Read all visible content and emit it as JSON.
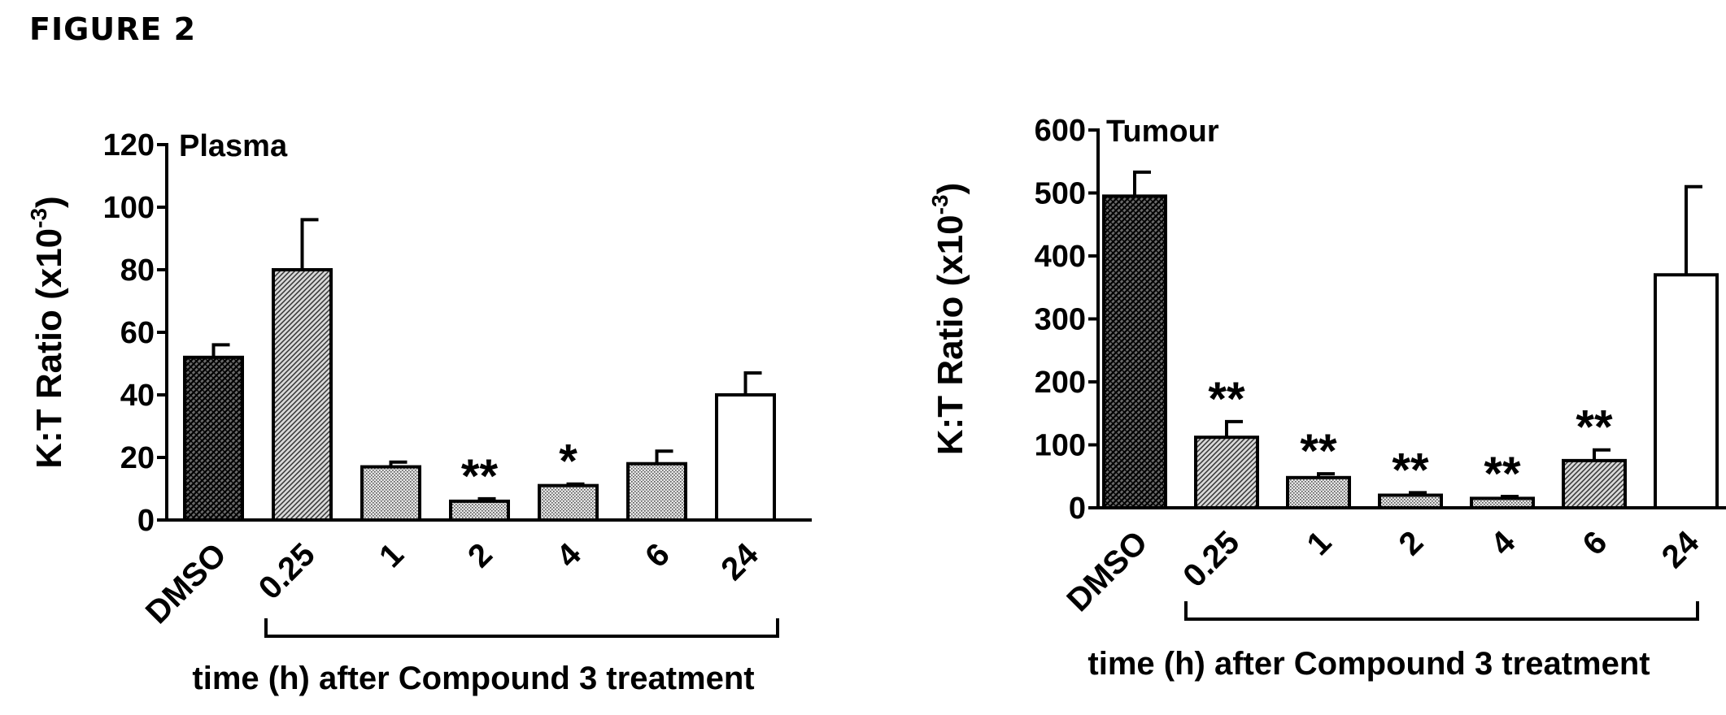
{
  "figure_label": "FIGURE 2",
  "chart_data": [
    {
      "type": "bar",
      "title": "Plasma",
      "ylabel": "K:T Ratio (x10",
      "ylabel_exp": "-3",
      "ylabel_close": ")",
      "xlabel": "time (h) after Compound 3 treatment",
      "categories": [
        "DMSO",
        "0.25",
        "1",
        "2",
        "4",
        "6",
        "24"
      ],
      "values": [
        52,
        80,
        17,
        6,
        11,
        18,
        40
      ],
      "errors": [
        4,
        16,
        1.5,
        0.8,
        0.5,
        4,
        7
      ],
      "significance": [
        "",
        "",
        "",
        "**",
        "*",
        "",
        ""
      ],
      "ylim": [
        0,
        120
      ],
      "yticks": [
        0,
        20,
        40,
        60,
        80,
        100,
        120
      ],
      "bar_patterns": [
        "dense-crosshatch",
        "diagonal-hatch",
        "fine-dot",
        "fine-dot",
        "fine-dot",
        "fine-dot",
        "open"
      ],
      "grid": false
    },
    {
      "type": "bar",
      "title": "Tumour",
      "ylabel": "K:T Ratio (x10",
      "ylabel_exp": "-3",
      "ylabel_close": ")",
      "xlabel": "time (h) after Compound 3 treatment",
      "categories": [
        "DMSO",
        "0.25",
        "1",
        "2",
        "4",
        "6",
        "24"
      ],
      "values": [
        495,
        112,
        48,
        20,
        15,
        75,
        370
      ],
      "errors": [
        38,
        25,
        6,
        4,
        3,
        17,
        140
      ],
      "significance": [
        "",
        "**",
        "**",
        "**",
        "**",
        "**",
        ""
      ],
      "ylim": [
        0,
        600
      ],
      "yticks": [
        0,
        100,
        200,
        300,
        400,
        500,
        600
      ],
      "bar_patterns": [
        "dense-crosshatch",
        "diagonal-hatch",
        "fine-dot",
        "fine-dot",
        "fine-dot",
        "diagonal-hatch",
        "open"
      ],
      "grid": false
    }
  ]
}
